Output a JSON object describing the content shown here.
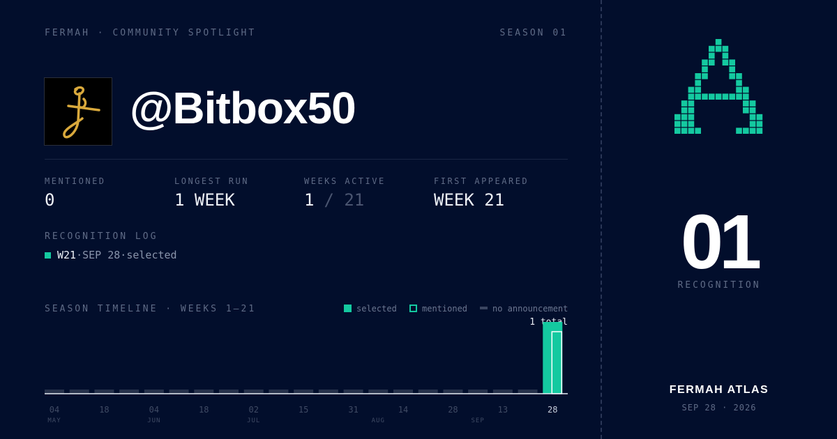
{
  "header": {
    "brand": "FERMAH · COMMUNITY SPOTLIGHT",
    "season": "SEASON 01"
  },
  "profile": {
    "handle": "@Bitbox50"
  },
  "stats": [
    {
      "label": "MENTIONED",
      "value": 0
    },
    {
      "label": "LONGEST RUN",
      "value": "1 WEEK"
    },
    {
      "label": "WEEKS ACTIVE",
      "value": 1,
      "total": "/ 21"
    },
    {
      "label": "FIRST APPEARED",
      "value": "WEEK 21"
    }
  ],
  "log": {
    "title": "RECOGNITION LOG",
    "entries": [
      {
        "week": "W21",
        "rest": "·SEP 28·selected"
      }
    ]
  },
  "chart_data": {
    "type": "bar",
    "title": "SEASON TIMELINE · WEEKS 1–21",
    "legend": [
      {
        "name": "selected",
        "color": "#14c9a0"
      },
      {
        "name": "mentioned",
        "color": "#14c9a0"
      },
      {
        "name": "no announcement",
        "color": "#3a4560"
      }
    ],
    "total_label": "1 total",
    "values": [
      0,
      0,
      0,
      0,
      0,
      0,
      0,
      0,
      0,
      0,
      0,
      0,
      0,
      0,
      0,
      0,
      0,
      0,
      0,
      0,
      1
    ],
    "day_labels": [
      "04",
      null,
      "18",
      null,
      "04",
      null,
      "18",
      null,
      "02",
      null,
      "15",
      null,
      "31",
      null,
      "14",
      null,
      "28",
      null,
      "13",
      null,
      "28"
    ],
    "month_labels": [
      "MAY",
      null,
      null,
      null,
      "JUN",
      null,
      null,
      null,
      "JUL",
      null,
      null,
      null,
      null,
      "AUG",
      null,
      null,
      null,
      "SEP",
      null,
      null,
      null
    ],
    "ylim": [
      0,
      1
    ]
  },
  "right": {
    "count": "01",
    "count_label": "RECOGNITION",
    "brand": "FERMAH ATLAS",
    "date": "SEP 28 · 2026"
  }
}
